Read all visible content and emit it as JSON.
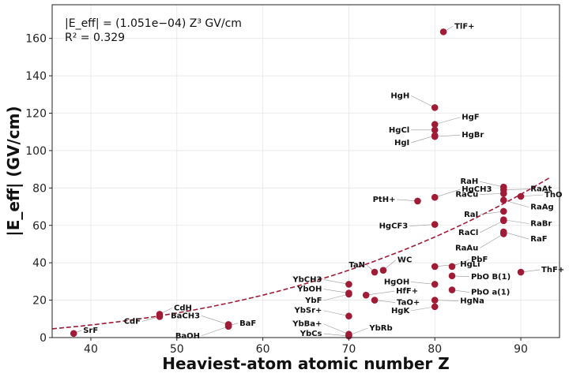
{
  "chart_data": {
    "type": "scatter",
    "xlabel": "Heaviest-atom atomic number Z",
    "ylabel": "|E_eff| (GV/cm)",
    "xlim": [
      35.5,
      94.5
    ],
    "ylim": [
      0,
      178
    ],
    "xticks": [
      40,
      50,
      60,
      70,
      80,
      90
    ],
    "yticks": [
      0,
      20,
      40,
      60,
      80,
      100,
      120,
      140,
      160
    ],
    "grid": true,
    "annotation_line1": "|E_eff| = (1.051e−04) Z³ GV/cm",
    "annotation_line2": "R² = 0.329",
    "fit": {
      "type": "power",
      "coefficient": 0.0001051,
      "exponent": 3,
      "x_range": [
        35.5,
        93.5
      ]
    },
    "point_color": "#a01c36",
    "points": [
      {
        "label": "SrF",
        "x": 38,
        "y": 2.2
      },
      {
        "label": "CdH",
        "x": 48,
        "y": 12.5
      },
      {
        "label": "CdF",
        "x": 48,
        "y": 11.2
      },
      {
        "label": "BaCH3",
        "x": 56,
        "y": 7.0
      },
      {
        "label": "BaF",
        "x": 56,
        "y": 6.4
      },
      {
        "label": "BaOH",
        "x": 56,
        "y": 6.0
      },
      {
        "label": "YbCH3",
        "x": 70,
        "y": 28.5
      },
      {
        "label": "YbOH",
        "x": 70,
        "y": 23.8
      },
      {
        "label": "YbF",
        "x": 70,
        "y": 23.2
      },
      {
        "label": "YbSr+",
        "x": 70,
        "y": 11.5
      },
      {
        "label": "YbBa+",
        "x": 70,
        "y": 1.8
      },
      {
        "label": "YbCs",
        "x": 70,
        "y": 0.8
      },
      {
        "label": "YbRb",
        "x": 70,
        "y": 1.2
      },
      {
        "label": "HfF+",
        "x": 72,
        "y": 22.7
      },
      {
        "label": "TaN",
        "x": 73,
        "y": 35.0
      },
      {
        "label": "TaO+",
        "x": 73,
        "y": 20.0
      },
      {
        "label": "WC",
        "x": 74,
        "y": 36.0
      },
      {
        "label": "PtH+",
        "x": 78,
        "y": 73.0
      },
      {
        "label": "HgH",
        "x": 80,
        "y": 123.0
      },
      {
        "label": "HgF",
        "x": 80,
        "y": 114.0
      },
      {
        "label": "HgCl",
        "x": 80,
        "y": 111.0
      },
      {
        "label": "HgI",
        "x": 80,
        "y": 108.0
      },
      {
        "label": "HgBr",
        "x": 80,
        "y": 107.5
      },
      {
        "label": "HgCF3",
        "x": 80,
        "y": 60.5
      },
      {
        "label": "HgLi",
        "x": 80,
        "y": 38.0
      },
      {
        "label": "HgOH",
        "x": 80,
        "y": 28.5
      },
      {
        "label": "HgNa",
        "x": 80,
        "y": 20.0
      },
      {
        "label": "HgK",
        "x": 80,
        "y": 16.5
      },
      {
        "label": "HgCH3",
        "x": 80,
        "y": 75.0
      },
      {
        "label": "TlF+",
        "x": 81,
        "y": 163.5
      },
      {
        "label": "PbF",
        "x": 82,
        "y": 38.0
      },
      {
        "label": "PbO B(1)",
        "x": 82,
        "y": 33.0
      },
      {
        "label": "PbO a(1)",
        "x": 82,
        "y": 25.5
      },
      {
        "label": "RaH",
        "x": 88,
        "y": 80.5
      },
      {
        "label": "RaAt",
        "x": 88,
        "y": 79.0
      },
      {
        "label": "RaCu",
        "x": 88,
        "y": 77.0
      },
      {
        "label": "RaAg",
        "x": 88,
        "y": 73.5
      },
      {
        "label": "RaI",
        "x": 88,
        "y": 67.5
      },
      {
        "label": "RaBr",
        "x": 88,
        "y": 63.0
      },
      {
        "label": "RaCl",
        "x": 88,
        "y": 62.5
      },
      {
        "label": "RaF",
        "x": 88,
        "y": 56.5
      },
      {
        "label": "RaAu",
        "x": 88,
        "y": 55.5
      },
      {
        "label": "ThO",
        "x": 90,
        "y": 75.5
      },
      {
        "label": "ThF+",
        "x": 90,
        "y": 35.0
      }
    ]
  }
}
